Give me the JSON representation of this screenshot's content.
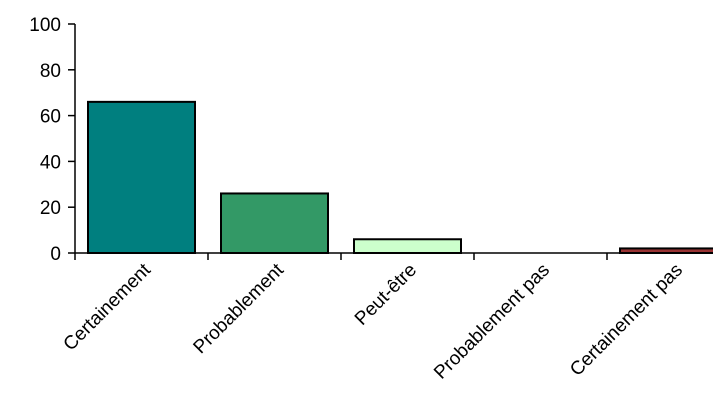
{
  "chart_data": {
    "type": "bar",
    "title": "",
    "xlabel": "",
    "ylabel": "",
    "categories": [
      "Certainement",
      "Probablement",
      "Peut-être",
      "Probablement pas",
      "Certainement pas"
    ],
    "values": [
      66,
      26,
      6,
      0,
      2
    ],
    "colors": [
      "#007F7F",
      "#339966",
      "#CCFFCC",
      "#FFFFFF",
      "#993333"
    ],
    "ylim": [
      0,
      100
    ],
    "yticks": [
      0,
      20,
      40,
      60,
      80,
      100
    ],
    "grid": false,
    "legend": "none"
  }
}
